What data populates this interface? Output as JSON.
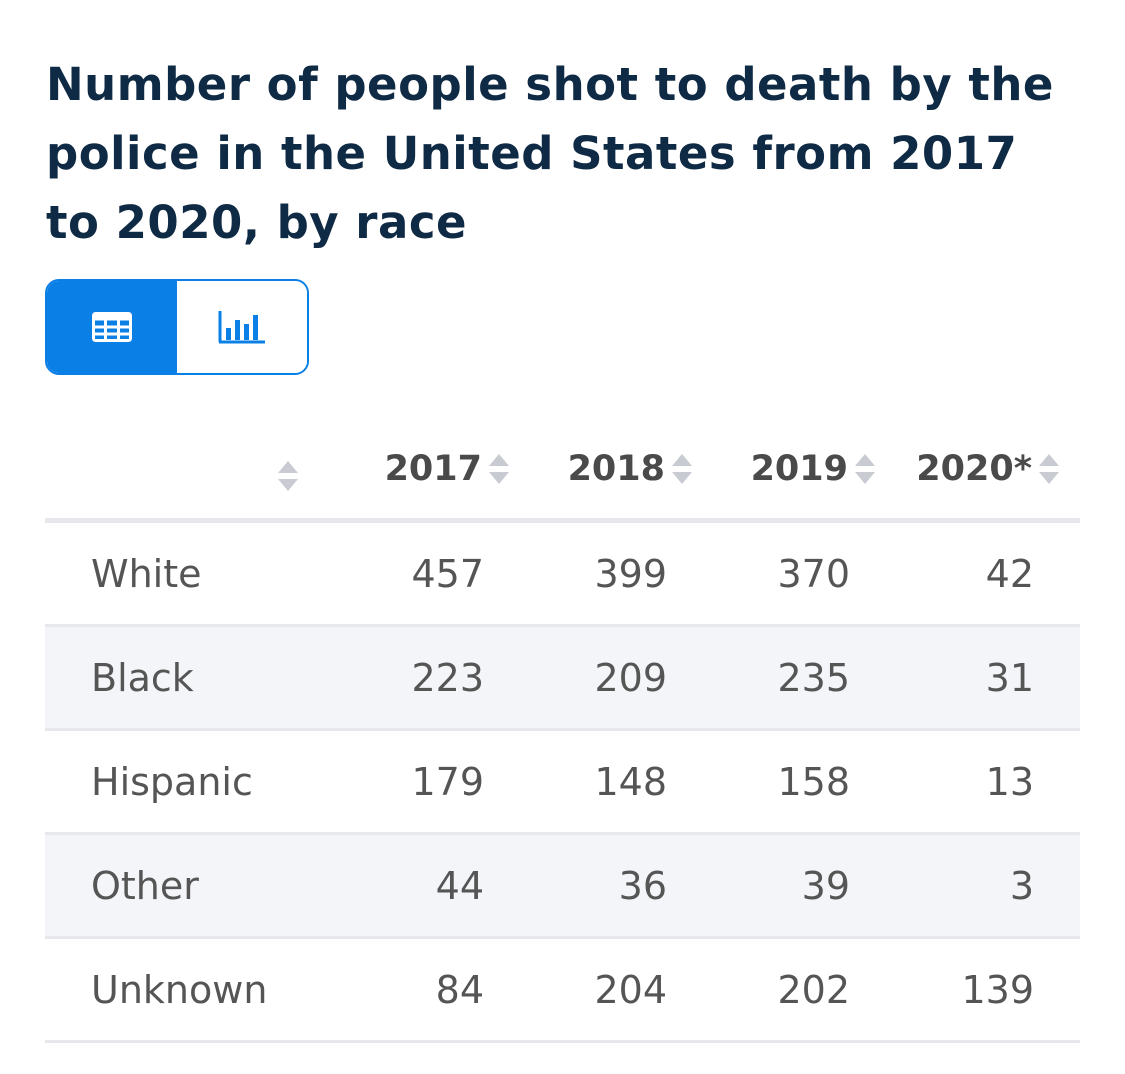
{
  "title": "Number of people shot to death by the police in the United States from 2017 to 2020, by race",
  "view_toggle": {
    "table_icon": "table-icon",
    "chart_icon": "bar-chart-icon",
    "active": "table"
  },
  "colors": {
    "accent": "#0a7fe6",
    "title": "#0f2a44",
    "stripe": "#f4f5f9"
  },
  "table": {
    "columns": [
      "",
      "2017",
      "2018",
      "2019",
      "2020*"
    ],
    "rows": [
      {
        "label": "White",
        "values": [
          "457",
          "399",
          "370",
          "42"
        ]
      },
      {
        "label": "Black",
        "values": [
          "223",
          "209",
          "235",
          "31"
        ]
      },
      {
        "label": "Hispanic",
        "values": [
          "179",
          "148",
          "158",
          "13"
        ]
      },
      {
        "label": "Other",
        "values": [
          "44",
          "36",
          "39",
          "3"
        ]
      },
      {
        "label": "Unknown",
        "values": [
          "84",
          "204",
          "202",
          "139"
        ]
      }
    ]
  },
  "chart_data": {
    "type": "table",
    "title": "Number of people shot to death by the police in the United States from 2017 to 2020, by race",
    "categories": [
      "2017",
      "2018",
      "2019",
      "2020*"
    ],
    "series": [
      {
        "name": "White",
        "values": [
          457,
          399,
          370,
          42
        ]
      },
      {
        "name": "Black",
        "values": [
          223,
          209,
          235,
          31
        ]
      },
      {
        "name": "Hispanic",
        "values": [
          179,
          148,
          158,
          13
        ]
      },
      {
        "name": "Other",
        "values": [
          44,
          36,
          39,
          3
        ]
      },
      {
        "name": "Unknown",
        "values": [
          84,
          204,
          202,
          139
        ]
      }
    ]
  }
}
